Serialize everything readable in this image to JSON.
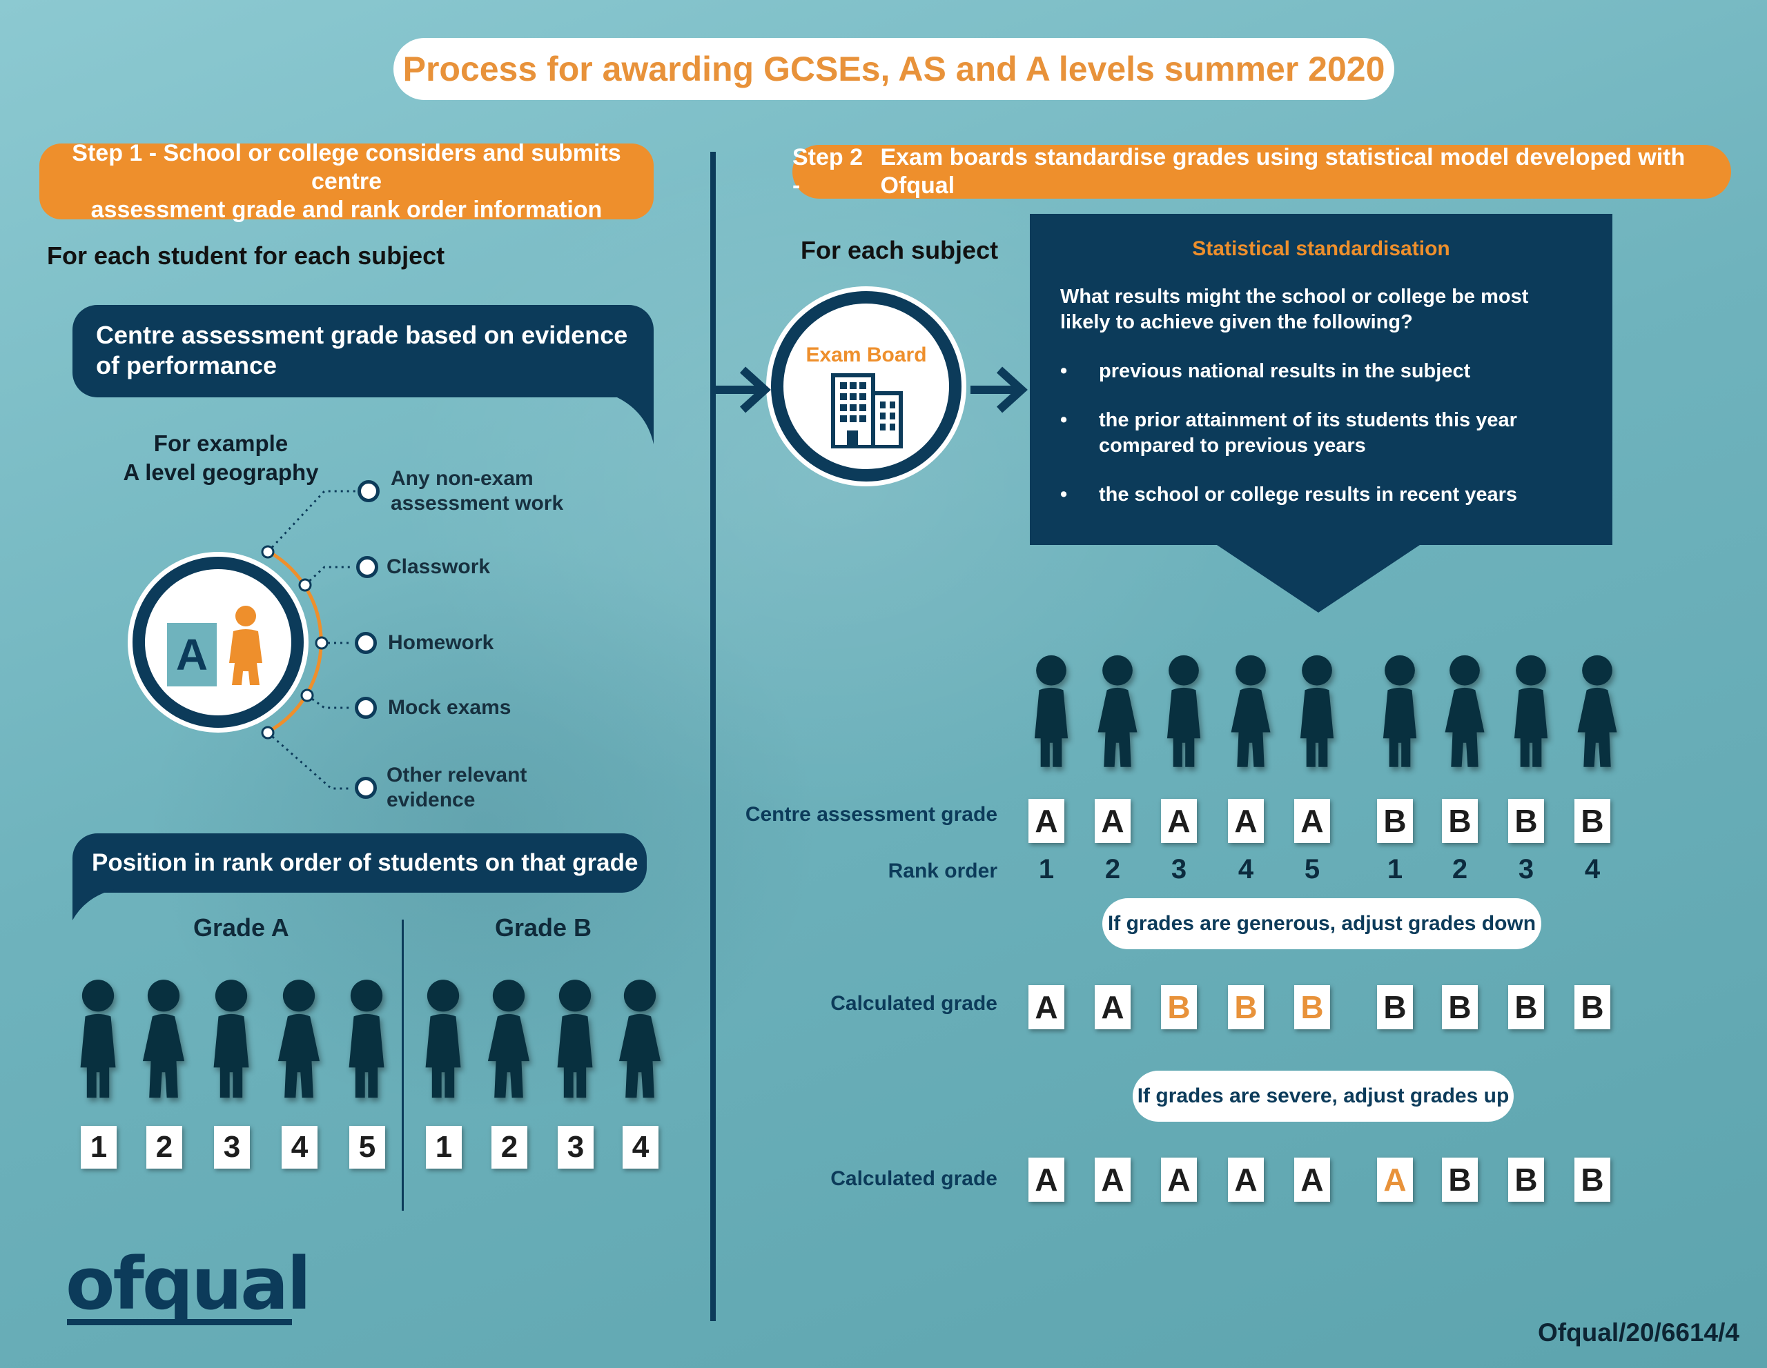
{
  "title": "Process for awarding GCSEs, AS and A levels summer 2020",
  "step1": {
    "prefix": "Step 1 -",
    "line1": "School or college considers and submits centre",
    "line2": "assessment grade and rank order information",
    "subheading": "For each student for each subject",
    "bubble_text": "Centre assessment grade based on evidence of performance",
    "example_line1": "For example",
    "example_line2": "A level geography",
    "grade_icon_letter": "A",
    "evidence": [
      {
        "line1": "Any non-exam",
        "line2": "assessment work"
      },
      {
        "line1": "Classwork",
        "line2": ""
      },
      {
        "line1": "Homework",
        "line2": ""
      },
      {
        "line1": "Mock exams",
        "line2": ""
      },
      {
        "line1": "Other relevant",
        "line2": "evidence"
      }
    ],
    "rank_bubble_text": "Position in rank order of students on that grade",
    "grade_a_title": "Grade A",
    "grade_b_title": "Grade B",
    "grade_a_ranks": [
      "1",
      "2",
      "3",
      "4",
      "5"
    ],
    "grade_b_ranks": [
      "1",
      "2",
      "3",
      "4"
    ]
  },
  "step2": {
    "prefix": "Step 2 -",
    "text": "Exam boards standardise grades using statistical model developed with Ofqual",
    "subheading": "For each subject",
    "exam_board_label": "Exam Board",
    "stat_title": "Statistical standardisation",
    "stat_question": "What results might the school or college be most likely to achieve given the following?",
    "stat_points": [
      "previous national results in the subject",
      "the prior attainment of its students this year compared to previous years",
      "the school or college results in recent years"
    ],
    "centre_grade_label": "Centre assessment grade",
    "rank_order_label": "Rank order",
    "centre_grades": [
      "A",
      "A",
      "A",
      "A",
      "A",
      "B",
      "B",
      "B",
      "B"
    ],
    "rank_order": [
      "1",
      "2",
      "3",
      "4",
      "5",
      "1",
      "2",
      "3",
      "4"
    ],
    "generous_note": "If grades are generous, adjust grades down",
    "calculated_label": "Calculated grade",
    "calculated_down": [
      "A",
      "A",
      "B",
      "B",
      "B",
      "B",
      "B",
      "B",
      "B"
    ],
    "calculated_down_changed": [
      false,
      false,
      true,
      true,
      true,
      false,
      false,
      false,
      false
    ],
    "severe_note": "If grades are severe, adjust grades up",
    "calculated_up": [
      "A",
      "A",
      "A",
      "A",
      "A",
      "A",
      "B",
      "B",
      "B"
    ],
    "calculated_up_changed": [
      false,
      false,
      false,
      false,
      false,
      true,
      false,
      false,
      false
    ]
  },
  "logo_text": "ofqual",
  "reference_code": "Ofqual/20/6614/4",
  "colors": {
    "navy": "#0c3b5a",
    "orange": "#ee8f2c",
    "person": "#08303f",
    "background": "#6fb3bd"
  }
}
